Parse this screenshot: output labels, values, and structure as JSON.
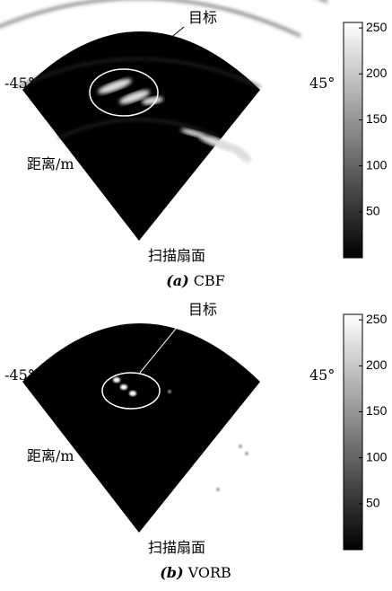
{
  "panels": [
    {
      "target_label": "目标",
      "left_angle": "-45°",
      "right_angle": "45°",
      "range_label": "距离/m",
      "sector_label": "扫描扇面",
      "caption_index": "(a)",
      "caption_text": "CBF",
      "colorbar": {
        "clim": [
          0,
          256
        ],
        "ticks": [
          50,
          100,
          150,
          200,
          250
        ]
      }
    },
    {
      "target_label": "目标",
      "left_angle": "-45°",
      "right_angle": "45°",
      "range_label": "距离/m",
      "sector_label": "扫描扇面",
      "caption_index": "(b)",
      "caption_text": "VORB",
      "colorbar": {
        "clim": [
          0,
          256
        ],
        "ticks": [
          50,
          100,
          150,
          200,
          250
        ]
      }
    }
  ]
}
